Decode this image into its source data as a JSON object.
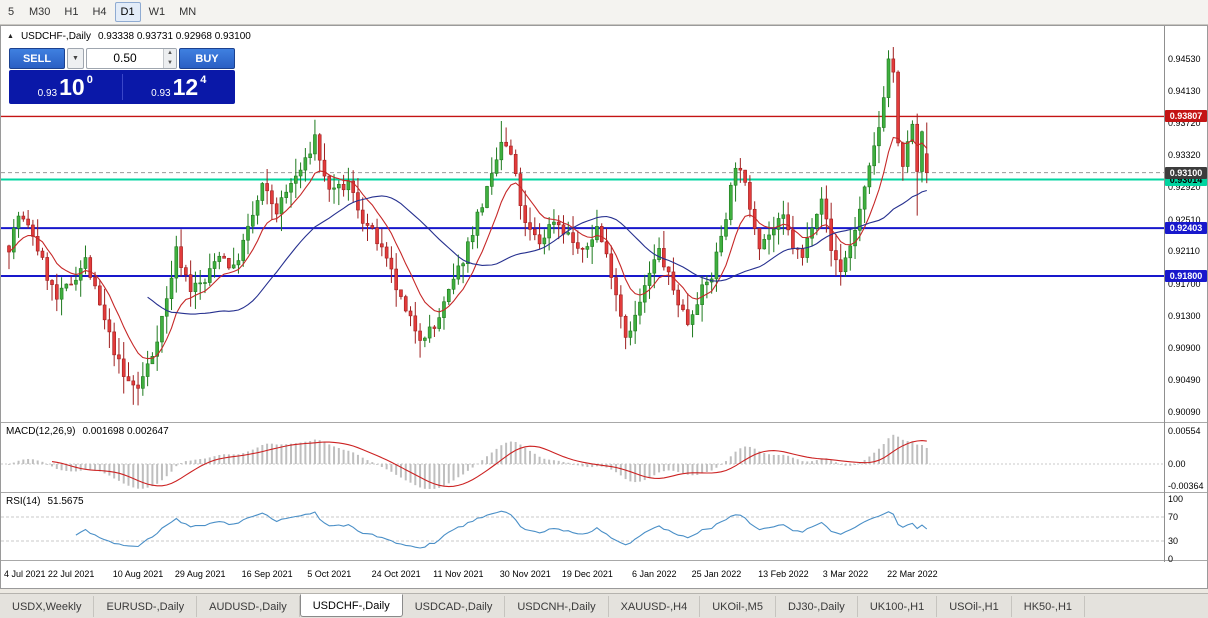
{
  "toolbar": {
    "timeframes": [
      {
        "label": "5",
        "active": false
      },
      {
        "label": "M30",
        "active": false
      },
      {
        "label": "H1",
        "active": false
      },
      {
        "label": "H4",
        "active": false
      },
      {
        "label": "D1",
        "active": true
      },
      {
        "label": "W1",
        "active": false
      },
      {
        "label": "MN",
        "active": false
      }
    ]
  },
  "chart": {
    "title": "USDCHF-,Daily",
    "ohlc_text": "0.93338  0.93731  0.92968  0.93100"
  },
  "trade_panel": {
    "sell_label": "SELL",
    "buy_label": "BUY",
    "volume": "0.50",
    "sell_price_small": "0.93",
    "sell_price_big": "10",
    "sell_price_sup": "0",
    "buy_price_small": "0.93",
    "buy_price_big": "12",
    "buy_price_sup": "4"
  },
  "macd_panel": {
    "label": "MACD(12,26,9)",
    "values": "0.001698 0.002647",
    "axis_labels": [
      "0.00554",
      "0.00",
      "-0.00364"
    ],
    "axis_values": [
      0.00554,
      0,
      -0.00364
    ]
  },
  "rsi_panel": {
    "label": "RSI(14)",
    "value": "51.5675",
    "axis_labels": [
      "100",
      "70",
      "30",
      "0"
    ],
    "axis_values": [
      100,
      70,
      30,
      0
    ]
  },
  "price_axis": {
    "ticks": [
      "0.94530",
      "0.94130",
      "0.93720",
      "0.93320",
      "0.92920",
      "0.92510",
      "0.92110",
      "0.91700",
      "0.91300",
      "0.90900",
      "0.90490",
      "0.90090"
    ],
    "tags": [
      {
        "text": "0.93807",
        "price": 0.93807,
        "bg": "#c41414",
        "fg": "#ffffff"
      },
      {
        "text": "0.93014",
        "price": 0.93014,
        "bg": "#00d5a0",
        "fg": "#000000"
      },
      {
        "text": "0.93100",
        "price": 0.931,
        "bg": "#3c3c3c",
        "fg": "#ffffff"
      },
      {
        "text": "0.92403",
        "price": 0.92403,
        "bg": "#1818cc",
        "fg": "#ffffff"
      },
      {
        "text": "0.91800",
        "price": 0.918,
        "bg": "#1818cc",
        "fg": "#ffffff"
      }
    ]
  },
  "tabs": [
    {
      "label": "USDX,Weekly",
      "active": false
    },
    {
      "label": "EURUSD-,Daily",
      "active": false
    },
    {
      "label": "AUDUSD-,Daily",
      "active": false
    },
    {
      "label": "USDCHF-,Daily",
      "active": true
    },
    {
      "label": "USDCAD-,Daily",
      "active": false
    },
    {
      "label": "USDCNH-,Daily",
      "active": false
    },
    {
      "label": "XAUUSD-,H4",
      "active": false
    },
    {
      "label": "UKOil-,M5",
      "active": false
    },
    {
      "label": "DJ30-,Daily",
      "active": false
    },
    {
      "label": "UK100-,H1",
      "active": false
    },
    {
      "label": "USOil-,H1",
      "active": false
    },
    {
      "label": "HK50-,H1",
      "active": false
    }
  ],
  "chart_data": {
    "type": "candlestick",
    "symbol": "USDCHF-",
    "timeframe": "Daily",
    "num_candles": 193,
    "last_candle": {
      "open": 0.93338,
      "high": 0.93731,
      "low": 0.92968,
      "close": 0.931
    },
    "current_price": 0.931,
    "y_axis_range": [
      0.9009,
      0.9453
    ],
    "levels": [
      {
        "price": 0.93807,
        "color": "#c41414",
        "width": 1.4
      },
      {
        "price": 0.93014,
        "color": "#00d5a0",
        "width": 2
      },
      {
        "price": 0.92403,
        "color": "#1818cc",
        "width": 2
      },
      {
        "price": 0.918,
        "color": "#1818cc",
        "width": 2
      }
    ],
    "candle_colors": {
      "up_fill": "#3faf3f",
      "up_stroke": "#1e7a1e",
      "down_fill": "#e23b3b",
      "down_stroke": "#9e1f1f"
    },
    "moving_averages": [
      {
        "type": "EMA",
        "period": 10,
        "color": "#c62828",
        "width": 1.1
      },
      {
        "type": "SMA",
        "period": 30,
        "color": "#26308f",
        "width": 1.1
      }
    ],
    "macd": {
      "fast": 12,
      "slow": 26,
      "signal": 9,
      "current_main": 0.001698,
      "current_signal": 0.002647,
      "axis_max": 0.00554,
      "axis_min": -0.00364,
      "histogram_color": "#bfbfbf",
      "signal_color": "#cc2222"
    },
    "rsi": {
      "period": 14,
      "current": 51.5675,
      "levels": [
        70,
        30
      ],
      "line_color": "#4a8fc7"
    },
    "x_axis_labels": [
      {
        "label": "4 Jul 2021",
        "i": 0
      },
      {
        "label": "22 Jul 2021",
        "i": 13
      },
      {
        "label": "10 Aug 2021",
        "i": 27
      },
      {
        "label": "29 Aug 2021",
        "i": 40
      },
      {
        "label": "16 Sep 2021",
        "i": 54
      },
      {
        "label": "5 Oct 2021",
        "i": 67
      },
      {
        "label": "24 Oct 2021",
        "i": 81
      },
      {
        "label": "11 Nov 2021",
        "i": 94
      },
      {
        "label": "30 Nov 2021",
        "i": 108
      },
      {
        "label": "19 Dec 2021",
        "i": 121
      },
      {
        "label": "6 Jan 2022",
        "i": 135
      },
      {
        "label": "25 Jan 2022",
        "i": 148
      },
      {
        "label": "13 Feb 2022",
        "i": 162
      },
      {
        "label": "3 Mar 2022",
        "i": 175
      },
      {
        "label": "22 Mar 2022",
        "i": 189
      }
    ],
    "price_path_keypoints": [
      [
        0,
        0.9218
      ],
      [
        2,
        0.9256
      ],
      [
        5,
        0.9232
      ],
      [
        8,
        0.918
      ],
      [
        10,
        0.915
      ],
      [
        13,
        0.9172
      ],
      [
        16,
        0.92
      ],
      [
        20,
        0.9122
      ],
      [
        24,
        0.9052
      ],
      [
        27,
        0.9038
      ],
      [
        30,
        0.9082
      ],
      [
        33,
        0.915
      ],
      [
        35,
        0.9212
      ],
      [
        38,
        0.9165
      ],
      [
        41,
        0.9172
      ],
      [
        44,
        0.921
      ],
      [
        47,
        0.9188
      ],
      [
        50,
        0.9238
      ],
      [
        53,
        0.9292
      ],
      [
        56,
        0.9262
      ],
      [
        59,
        0.9296
      ],
      [
        62,
        0.9322
      ],
      [
        64,
        0.9356
      ],
      [
        66,
        0.9302
      ],
      [
        68,
        0.9284
      ],
      [
        71,
        0.9296
      ],
      [
        74,
        0.9252
      ],
      [
        77,
        0.9224
      ],
      [
        80,
        0.9182
      ],
      [
        83,
        0.9132
      ],
      [
        86,
        0.9106
      ],
      [
        89,
        0.9114
      ],
      [
        92,
        0.9158
      ],
      [
        95,
        0.9202
      ],
      [
        98,
        0.9256
      ],
      [
        101,
        0.9302
      ],
      [
        103,
        0.9348
      ],
      [
        105,
        0.9332
      ],
      [
        108,
        0.9242
      ],
      [
        111,
        0.9222
      ],
      [
        114,
        0.9252
      ],
      [
        117,
        0.9232
      ],
      [
        120,
        0.9206
      ],
      [
        123,
        0.9242
      ],
      [
        126,
        0.9186
      ],
      [
        129,
        0.9106
      ],
      [
        131,
        0.9128
      ],
      [
        134,
        0.9182
      ],
      [
        136,
        0.9212
      ],
      [
        139,
        0.9162
      ],
      [
        142,
        0.9122
      ],
      [
        144,
        0.9152
      ],
      [
        147,
        0.918
      ],
      [
        150,
        0.9258
      ],
      [
        152,
        0.9322
      ],
      [
        154,
        0.9292
      ],
      [
        157,
        0.9222
      ],
      [
        160,
        0.9238
      ],
      [
        162,
        0.9252
      ],
      [
        164,
        0.9218
      ],
      [
        166,
        0.9202
      ],
      [
        168,
        0.9248
      ],
      [
        170,
        0.9282
      ],
      [
        172,
        0.9212
      ],
      [
        174,
        0.9188
      ],
      [
        176,
        0.9218
      ],
      [
        178,
        0.9262
      ],
      [
        180,
        0.9312
      ],
      [
        182,
        0.9368
      ],
      [
        184,
        0.9452
      ],
      [
        185,
        0.9438
      ],
      [
        186,
        0.9342
      ],
      [
        187,
        0.9312
      ],
      [
        188,
        0.9352
      ],
      [
        189,
        0.9366
      ],
      [
        190,
        0.9312
      ],
      [
        191,
        0.9354
      ],
      [
        192,
        0.931
      ]
    ],
    "spike_highs": [
      [
        64,
        0.9368
      ],
      [
        103,
        0.9375
      ],
      [
        184,
        0.9464
      ]
    ],
    "spike_lows": [
      [
        26,
        0.9018
      ],
      [
        86,
        0.9086
      ],
      [
        129,
        0.9088
      ],
      [
        190,
        0.9256
      ]
    ]
  }
}
